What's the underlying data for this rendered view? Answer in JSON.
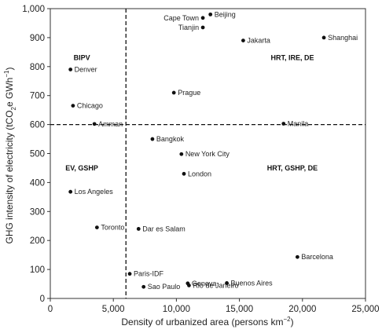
{
  "chart_data": {
    "type": "scatter",
    "xlabel": "Density of urbanized area (persons km",
    "xlabel_sup": "−2",
    "xlabel_end": ")",
    "ylabel_a": "GHG intensity of electricity (tCO",
    "ylabel_sub": "2",
    "ylabel_b": "e GWh",
    "ylabel_sup": "−1",
    "ylabel_c": ")",
    "xlim": [
      0,
      25000
    ],
    "ylim": [
      0,
      1000
    ],
    "x_ticks": [
      0,
      5000,
      10000,
      15000,
      20000,
      25000
    ],
    "x_tick_labels": [
      "0",
      "5,000",
      "10,000",
      "15,000",
      "20,000",
      "25,000"
    ],
    "y_ticks": [
      0,
      100,
      200,
      300,
      400,
      500,
      600,
      700,
      800,
      900,
      1000
    ],
    "y_tick_labels": [
      "0",
      "100",
      "200",
      "300",
      "400",
      "500",
      "600",
      "700",
      "800",
      "900",
      "1,000"
    ],
    "threshold_x": 6000,
    "threshold_y": 600,
    "regions": [
      {
        "label": "BIPV",
        "x": 2500,
        "y": 830
      },
      {
        "label": "HRT, IRE, DE",
        "x": 19200,
        "y": 830
      },
      {
        "label": "EV, GSHP",
        "x": 2500,
        "y": 450
      },
      {
        "label": "HRT, GSHP, DE",
        "x": 19200,
        "y": 450
      }
    ],
    "points": [
      {
        "name": "Beijing",
        "x": 12700,
        "y": 980,
        "anchor": "start"
      },
      {
        "name": "Cape Town",
        "x": 12100,
        "y": 968,
        "anchor": "end"
      },
      {
        "name": "Tianjin",
        "x": 12100,
        "y": 935,
        "anchor": "end"
      },
      {
        "name": "Jakarta",
        "x": 15300,
        "y": 890,
        "anchor": "start"
      },
      {
        "name": "Shanghai",
        "x": 21700,
        "y": 900,
        "anchor": "start"
      },
      {
        "name": "Denver",
        "x": 1600,
        "y": 790,
        "anchor": "start"
      },
      {
        "name": "Prague",
        "x": 9800,
        "y": 710,
        "anchor": "start"
      },
      {
        "name": "Chicago",
        "x": 1800,
        "y": 665,
        "anchor": "start"
      },
      {
        "name": "Amman",
        "x": 3500,
        "y": 602,
        "anchor": "start"
      },
      {
        "name": "Manila",
        "x": 18500,
        "y": 603,
        "anchor": "start"
      },
      {
        "name": "Bangkok",
        "x": 8100,
        "y": 550,
        "anchor": "start"
      },
      {
        "name": "New York City",
        "x": 10400,
        "y": 498,
        "anchor": "start"
      },
      {
        "name": "London",
        "x": 10600,
        "y": 430,
        "anchor": "start"
      },
      {
        "name": "Los Angeles",
        "x": 1600,
        "y": 368,
        "anchor": "start"
      },
      {
        "name": "Toronto",
        "x": 3700,
        "y": 245,
        "anchor": "start"
      },
      {
        "name": "Dar es Salam",
        "x": 7000,
        "y": 240,
        "anchor": "start"
      },
      {
        "name": "Barcelona",
        "x": 19600,
        "y": 143,
        "anchor": "start"
      },
      {
        "name": "Paris-IDF",
        "x": 6300,
        "y": 85,
        "anchor": "start"
      },
      {
        "name": "Geneva",
        "x": 10900,
        "y": 52,
        "anchor": "start"
      },
      {
        "name": "Rio de Janeiro",
        "x": 11000,
        "y": 45,
        "anchor": "start"
      },
      {
        "name": "Buenos Aires",
        "x": 14000,
        "y": 53,
        "anchor": "start"
      },
      {
        "name": "Sao Paulo",
        "x": 7400,
        "y": 40,
        "anchor": "start"
      }
    ]
  }
}
